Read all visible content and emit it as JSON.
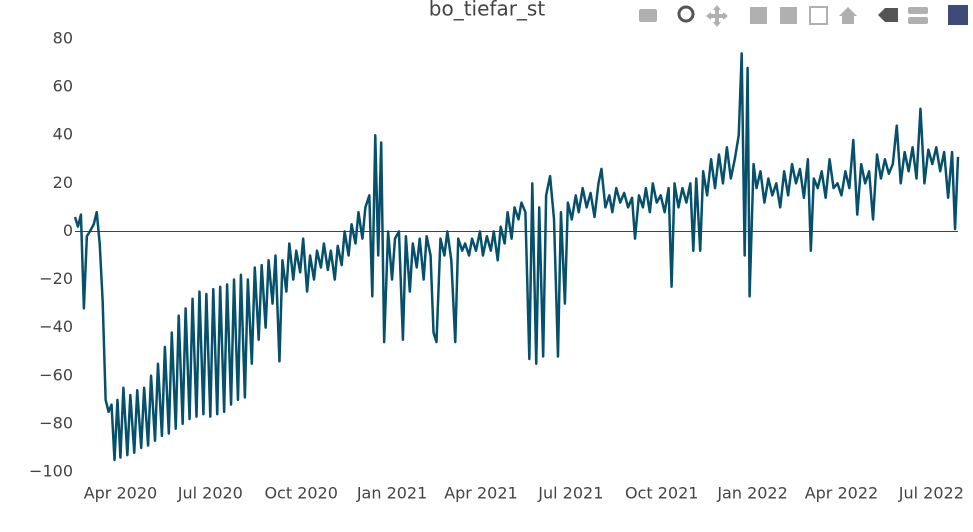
{
  "chart_data": {
    "type": "line",
    "title": "bo_tiefar_st",
    "x": [
      "2020-02-15",
      "2020-02-18",
      "2020-02-21",
      "2020-02-24",
      "2020-02-27",
      "2020-03-01",
      "2020-03-05",
      "2020-03-08",
      "2020-03-11",
      "2020-03-14",
      "2020-03-17",
      "2020-03-20",
      "2020-03-23",
      "2020-03-26",
      "2020-03-29",
      "2020-04-01",
      "2020-04-04",
      "2020-04-08",
      "2020-04-11",
      "2020-04-15",
      "2020-04-18",
      "2020-04-22",
      "2020-04-25",
      "2020-04-29",
      "2020-05-02",
      "2020-05-06",
      "2020-05-09",
      "2020-05-13",
      "2020-05-16",
      "2020-05-20",
      "2020-05-23",
      "2020-05-27",
      "2020-05-30",
      "2020-06-03",
      "2020-06-06",
      "2020-06-10",
      "2020-06-13",
      "2020-06-17",
      "2020-06-20",
      "2020-06-24",
      "2020-06-27",
      "2020-07-01",
      "2020-07-04",
      "2020-07-08",
      "2020-07-11",
      "2020-07-15",
      "2020-07-18",
      "2020-07-22",
      "2020-07-25",
      "2020-07-29",
      "2020-08-01",
      "2020-08-05",
      "2020-08-08",
      "2020-08-12",
      "2020-08-15",
      "2020-08-19",
      "2020-08-22",
      "2020-08-26",
      "2020-08-29",
      "2020-09-02",
      "2020-09-05",
      "2020-09-09",
      "2020-09-12",
      "2020-09-16",
      "2020-09-19",
      "2020-09-23",
      "2020-09-26",
      "2020-09-30",
      "2020-10-03",
      "2020-10-07",
      "2020-10-10",
      "2020-10-14",
      "2020-10-17",
      "2020-10-21",
      "2020-10-24",
      "2020-10-28",
      "2020-10-31",
      "2020-11-04",
      "2020-11-07",
      "2020-11-11",
      "2020-11-14",
      "2020-11-18",
      "2020-11-21",
      "2020-11-25",
      "2020-11-28",
      "2020-12-02",
      "2020-12-05",
      "2020-12-09",
      "2020-12-12",
      "2020-12-15",
      "2020-12-18",
      "2020-12-21",
      "2020-12-24",
      "2020-12-28",
      "2021-01-01",
      "2021-01-04",
      "2021-01-08",
      "2021-01-12",
      "2021-01-15",
      "2021-01-19",
      "2021-01-22",
      "2021-01-26",
      "2021-01-29",
      "2021-02-02",
      "2021-02-05",
      "2021-02-09",
      "2021-02-12",
      "2021-02-15",
      "2021-02-19",
      "2021-02-23",
      "2021-02-26",
      "2021-03-02",
      "2021-03-06",
      "2021-03-09",
      "2021-03-13",
      "2021-03-16",
      "2021-03-20",
      "2021-03-23",
      "2021-03-27",
      "2021-03-31",
      "2021-04-03",
      "2021-04-07",
      "2021-04-11",
      "2021-04-14",
      "2021-04-18",
      "2021-04-21",
      "2021-04-25",
      "2021-04-28",
      "2021-05-02",
      "2021-05-05",
      "2021-05-09",
      "2021-05-12",
      "2021-05-16",
      "2021-05-20",
      "2021-05-23",
      "2021-05-27",
      "2021-05-30",
      "2021-06-03",
      "2021-06-06",
      "2021-06-10",
      "2021-06-14",
      "2021-06-18",
      "2021-06-21",
      "2021-06-25",
      "2021-06-28",
      "2021-07-02",
      "2021-07-06",
      "2021-07-09",
      "2021-07-13",
      "2021-07-17",
      "2021-07-21",
      "2021-07-25",
      "2021-07-29",
      "2021-08-01",
      "2021-08-05",
      "2021-08-09",
      "2021-08-12",
      "2021-08-16",
      "2021-08-20",
      "2021-08-24",
      "2021-08-28",
      "2021-09-01",
      "2021-09-04",
      "2021-09-08",
      "2021-09-12",
      "2021-09-15",
      "2021-09-19",
      "2021-09-22",
      "2021-09-26",
      "2021-09-30",
      "2021-10-04",
      "2021-10-08",
      "2021-10-11",
      "2021-10-14",
      "2021-10-18",
      "2021-10-22",
      "2021-10-26",
      "2021-10-30",
      "2021-11-02",
      "2021-11-05",
      "2021-11-09",
      "2021-11-12",
      "2021-11-16",
      "2021-11-20",
      "2021-11-24",
      "2021-11-28",
      "2021-12-02",
      "2021-12-06",
      "2021-12-10",
      "2021-12-14",
      "2021-12-18",
      "2021-12-21",
      "2021-12-24",
      "2021-12-27",
      "2021-12-29",
      "2022-01-02",
      "2022-01-05",
      "2022-01-09",
      "2022-01-13",
      "2022-01-17",
      "2022-01-21",
      "2022-01-25",
      "2022-01-29",
      "2022-02-02",
      "2022-02-06",
      "2022-02-10",
      "2022-02-14",
      "2022-02-18",
      "2022-02-22",
      "2022-02-26",
      "2022-03-01",
      "2022-03-04",
      "2022-03-08",
      "2022-03-12",
      "2022-03-16",
      "2022-03-20",
      "2022-03-24",
      "2022-03-28",
      "2022-04-01",
      "2022-04-05",
      "2022-04-09",
      "2022-04-13",
      "2022-04-17",
      "2022-04-21",
      "2022-04-25",
      "2022-04-29",
      "2022-05-03",
      "2022-05-07",
      "2022-05-11",
      "2022-05-15",
      "2022-05-19",
      "2022-05-23",
      "2022-05-27",
      "2022-05-31",
      "2022-06-04",
      "2022-06-08",
      "2022-06-12",
      "2022-06-16",
      "2022-06-20",
      "2022-06-24",
      "2022-06-28",
      "2022-07-02",
      "2022-07-06",
      "2022-07-10",
      "2022-07-14",
      "2022-07-18",
      "2022-07-22",
      "2022-07-25",
      "2022-07-28"
    ],
    "values": [
      6,
      2,
      7,
      -32,
      -2,
      0,
      3,
      8,
      -5,
      -29,
      -70,
      -75,
      -72,
      -95,
      -70,
      -94,
      -65,
      -93,
      -68,
      -92,
      -66,
      -90,
      -65,
      -89,
      -60,
      -87,
      -55,
      -85,
      -48,
      -84,
      -42,
      -82,
      -35,
      -80,
      -32,
      -78,
      -28,
      -77,
      -25,
      -76,
      -26,
      -77,
      -24,
      -76,
      -23,
      -75,
      -22,
      -72,
      -20,
      -70,
      -18,
      -69,
      -20,
      -55,
      -15,
      -45,
      -14,
      -40,
      -12,
      -30,
      -10,
      -54,
      -12,
      -25,
      -5,
      -20,
      -8,
      -17,
      -3,
      -25,
      -10,
      -20,
      -8,
      -15,
      -5,
      -16,
      -8,
      -20,
      -6,
      -14,
      0,
      -10,
      3,
      -5,
      8,
      -3,
      10,
      15,
      -27,
      40,
      -10,
      37,
      -46,
      0,
      -20,
      -3,
      0,
      -45,
      -2,
      -25,
      -5,
      -15,
      -3,
      -20,
      -2,
      -10,
      -42,
      -46,
      -3,
      -10,
      0,
      -12,
      -46,
      -3,
      -8,
      -5,
      -10,
      -3,
      -8,
      0,
      -10,
      -2,
      -8,
      0,
      -12,
      2,
      -5,
      8,
      -3,
      10,
      5,
      12,
      8,
      -53,
      20,
      -55,
      10,
      -52,
      15,
      23,
      5,
      -52,
      8,
      -30,
      12,
      5,
      15,
      8,
      18,
      10,
      16,
      6,
      20,
      26,
      10,
      15,
      8,
      18,
      12,
      16,
      10,
      14,
      -3,
      15,
      10,
      18,
      8,
      20,
      12,
      15,
      8,
      18,
      -23,
      20,
      10,
      18,
      12,
      20,
      -8,
      22,
      -8,
      25,
      15,
      30,
      18,
      32,
      20,
      35,
      22,
      30,
      40,
      74,
      -10,
      68,
      -27,
      28,
      18,
      25,
      12,
      22,
      15,
      20,
      10,
      25,
      15,
      28,
      20,
      26,
      14,
      30,
      -8,
      22,
      18,
      25,
      14,
      30,
      18,
      20,
      15,
      25,
      18,
      38,
      7,
      28,
      20,
      25,
      5,
      32,
      22,
      30,
      24,
      28,
      44,
      20,
      33,
      25,
      35,
      22,
      51,
      20,
      34,
      28,
      35,
      25,
      33,
      14,
      33,
      1,
      31
    ],
    "color": "#06506b",
    "xlim": [
      "2020-02-15",
      "2022-07-28"
    ],
    "xticks": [
      {
        "value": "2020-04-01",
        "label": "Apr 2020"
      },
      {
        "value": "2020-07-01",
        "label": "Jul 2020"
      },
      {
        "value": "2020-10-01",
        "label": "Oct 2020"
      },
      {
        "value": "2021-01-01",
        "label": "Jan 2021"
      },
      {
        "value": "2021-04-01",
        "label": "Apr 2021"
      },
      {
        "value": "2021-07-01",
        "label": "Jul 2021"
      },
      {
        "value": "2021-10-01",
        "label": "Oct 2021"
      },
      {
        "value": "2022-01-01",
        "label": "Jan 2022"
      },
      {
        "value": "2022-04-01",
        "label": "Apr 2022"
      },
      {
        "value": "2022-07-01",
        "label": "Jul 2022"
      }
    ],
    "ylim": [
      -100,
      80
    ],
    "yticks": [
      {
        "value": -100,
        "label": "−100"
      },
      {
        "value": -80,
        "label": "−80"
      },
      {
        "value": -60,
        "label": "−60"
      },
      {
        "value": -40,
        "label": "−40"
      },
      {
        "value": -20,
        "label": "−20"
      },
      0,
      20,
      40,
      60,
      80
    ],
    "zero_line": true
  }
}
